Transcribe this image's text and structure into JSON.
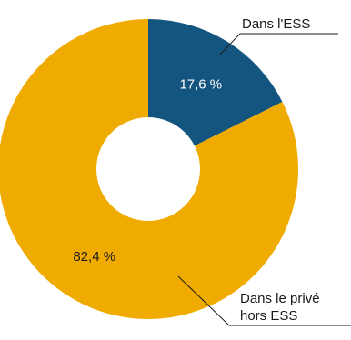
{
  "chart_data": {
    "type": "pie",
    "donut": true,
    "slices": [
      {
        "name": "Dans l'ESS",
        "callout": [
          "Dans l'ESS"
        ],
        "value": 17.6,
        "label": "17,6 %",
        "color": "#14557f",
        "label_color": "#ffffff"
      },
      {
        "name": "Dans le privé hors ESS",
        "callout": [
          "Dans le privé",
          "hors ESS"
        ],
        "value": 82.4,
        "label": "82,4 %",
        "color": "#f0ab00",
        "label_color": "#1a1a1a"
      }
    ],
    "legend": "none"
  }
}
